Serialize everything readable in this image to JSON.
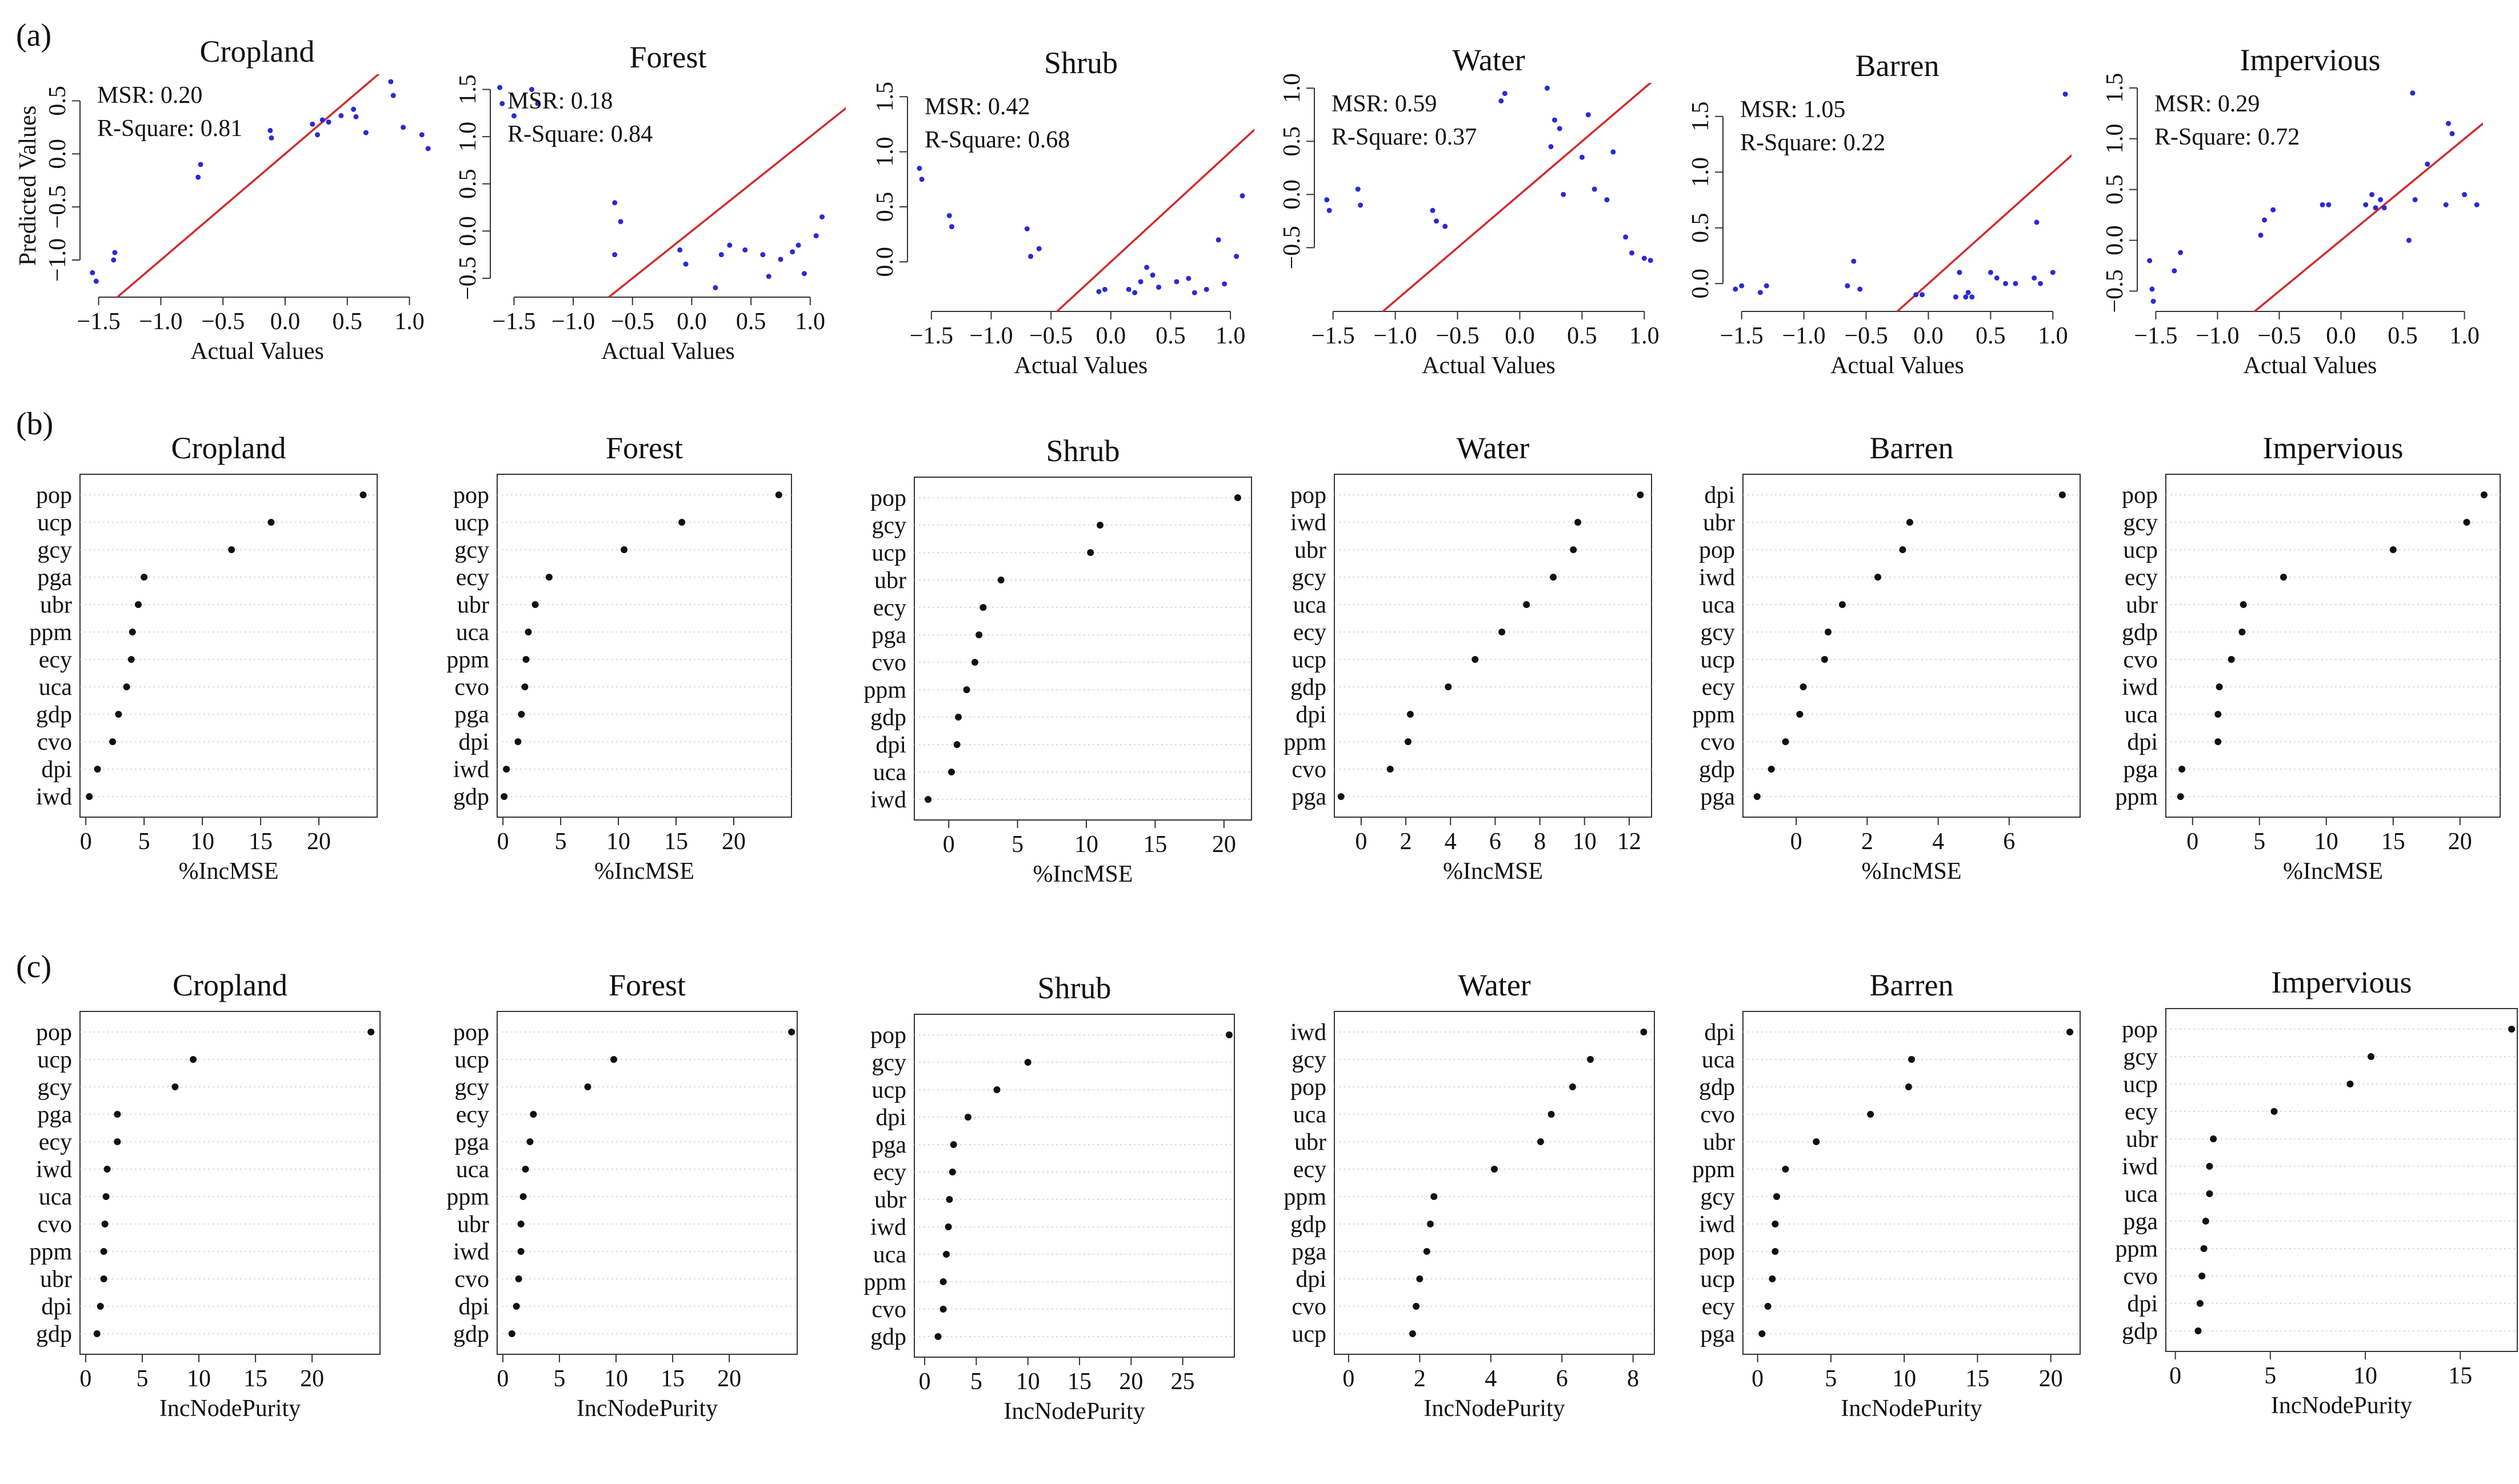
{
  "figure": {
    "row_labels": [
      "(a)",
      "(b)",
      "(c)"
    ],
    "classes": [
      "Cropland",
      "Forest",
      "Shrub",
      "Water",
      "Barren",
      "Impervious"
    ]
  },
  "chart_data": [
    {
      "row": "(a)",
      "type": "scatter",
      "title": "Cropland",
      "xlabel": "Actual Values",
      "ylabel": "Predicted Values",
      "xlim": [
        -1.65,
        1.2
      ],
      "ylim": [
        -1.35,
        0.75
      ],
      "xticks": [
        -1.5,
        -1.0,
        -0.5,
        0.0,
        0.5,
        1.0
      ],
      "xtick_labels": [
        "−1.5",
        "−1.0",
        "−0.5",
        "0.0",
        "0.5",
        "1.0"
      ],
      "yticks": [
        -1.0,
        -0.5,
        0.0,
        0.5
      ],
      "ytick_labels": [
        "−1.0",
        "−0.5",
        "0.0",
        "0.5"
      ],
      "annotation": [
        "MSR: 0.20",
        "R-Square: 0.81"
      ],
      "points": [
        [
          -1.55,
          -1.12
        ],
        [
          -1.52,
          -1.2
        ],
        [
          -1.38,
          -1.0
        ],
        [
          -1.37,
          -0.93
        ],
        [
          -0.7,
          -0.22
        ],
        [
          -0.68,
          -0.1
        ],
        [
          -0.12,
          0.22
        ],
        [
          -0.11,
          0.15
        ],
        [
          0.22,
          0.28
        ],
        [
          0.26,
          0.18
        ],
        [
          0.3,
          0.32
        ],
        [
          0.35,
          0.3
        ],
        [
          0.45,
          0.36
        ],
        [
          0.55,
          0.42
        ],
        [
          0.57,
          0.35
        ],
        [
          0.65,
          0.2
        ],
        [
          0.85,
          0.68
        ],
        [
          0.87,
          0.55
        ],
        [
          0.95,
          0.25
        ],
        [
          1.1,
          0.18
        ],
        [
          1.15,
          0.05
        ]
      ]
    },
    {
      "row": "(a)",
      "type": "scatter",
      "title": "Forest",
      "xlabel": "Actual Values",
      "ylabel": "",
      "xlim": [
        -1.7,
        1.3
      ],
      "ylim": [
        -0.7,
        1.6
      ],
      "xticks": [
        -1.5,
        -1.0,
        -0.5,
        0.0,
        0.5,
        1.0
      ],
      "xtick_labels": [
        "−1.5",
        "−1.0",
        "−0.5",
        "0.0",
        "0.5",
        "1.0"
      ],
      "yticks": [
        -0.5,
        0.0,
        0.5,
        1.0,
        1.5
      ],
      "ytick_labels": [
        "−0.5",
        "0.0",
        "0.5",
        "1.0",
        "1.5"
      ],
      "annotation": [
        "MSR: 0.18",
        "R-Square: 0.84"
      ],
      "points": [
        [
          -1.62,
          1.52
        ],
        [
          -1.6,
          1.35
        ],
        [
          -1.5,
          1.22
        ],
        [
          -1.35,
          1.5
        ],
        [
          -1.3,
          1.35
        ],
        [
          -0.65,
          0.3
        ],
        [
          -0.6,
          0.1
        ],
        [
          -0.65,
          -0.25
        ],
        [
          -0.1,
          -0.2
        ],
        [
          -0.05,
          -0.35
        ],
        [
          0.25,
          -0.25
        ],
        [
          0.32,
          -0.15
        ],
        [
          0.45,
          -0.2
        ],
        [
          0.6,
          -0.25
        ],
        [
          0.75,
          -0.3
        ],
        [
          0.85,
          -0.22
        ],
        [
          0.9,
          -0.15
        ],
        [
          0.95,
          -0.45
        ],
        [
          1.05,
          -0.05
        ],
        [
          1.1,
          0.15
        ],
        [
          0.65,
          -0.48
        ],
        [
          0.2,
          -0.6
        ]
      ]
    },
    {
      "row": "(a)",
      "type": "scatter",
      "title": "Shrub",
      "xlabel": "Actual Values",
      "ylabel": "",
      "xlim": [
        -1.7,
        1.2
      ],
      "ylim": [
        -0.45,
        1.6
      ],
      "xticks": [
        -1.5,
        -1.0,
        -0.5,
        0.0,
        0.5,
        1.0
      ],
      "xtick_labels": [
        "−1.5",
        "−1.0",
        "−0.5",
        "0.0",
        "0.5",
        "1.0"
      ],
      "yticks": [
        0.0,
        0.5,
        1.0,
        1.5
      ],
      "ytick_labels": [
        "0.0",
        "0.5",
        "1.0",
        "1.5"
      ],
      "annotation": [
        "MSR: 0.42",
        "R-Square: 0.68"
      ],
      "points": [
        [
          -1.6,
          0.85
        ],
        [
          -1.58,
          0.75
        ],
        [
          -1.35,
          0.42
        ],
        [
          -1.33,
          0.32
        ],
        [
          -0.7,
          0.3
        ],
        [
          -0.67,
          0.05
        ],
        [
          -0.6,
          0.12
        ],
        [
          -0.1,
          -0.27
        ],
        [
          -0.05,
          -0.25
        ],
        [
          0.15,
          -0.25
        ],
        [
          0.25,
          -0.18
        ],
        [
          0.3,
          -0.05
        ],
        [
          0.35,
          -0.12
        ],
        [
          0.4,
          -0.23
        ],
        [
          0.55,
          -0.18
        ],
        [
          0.65,
          -0.15
        ],
        [
          0.7,
          -0.28
        ],
        [
          0.8,
          -0.25
        ],
        [
          0.9,
          0.2
        ],
        [
          0.95,
          -0.2
        ],
        [
          1.05,
          0.05
        ],
        [
          1.1,
          0.6
        ],
        [
          0.2,
          -0.28
        ]
      ]
    },
    {
      "row": "(a)",
      "type": "scatter",
      "title": "Water",
      "xlabel": "Actual Values",
      "ylabel": "",
      "xlim": [
        -1.65,
        1.15
      ],
      "ylim": [
        -1.1,
        1.05
      ],
      "xticks": [
        -1.5,
        -1.0,
        -0.5,
        0.0,
        0.5,
        1.0
      ],
      "xtick_labels": [
        "−1.5",
        "−1.0",
        "−0.5",
        "0.0",
        "0.5",
        "1.0"
      ],
      "yticks": [
        -0.5,
        0.0,
        0.5,
        1.0
      ],
      "ytick_labels": [
        "−0.5",
        "0.0",
        "0.5",
        "1.0"
      ],
      "annotation": [
        "MSR: 0.59",
        "R-Square: 0.37"
      ],
      "points": [
        [
          -1.55,
          -0.05
        ],
        [
          -1.53,
          -0.15
        ],
        [
          -1.3,
          0.05
        ],
        [
          -1.28,
          -0.1
        ],
        [
          -0.7,
          -0.15
        ],
        [
          -0.67,
          -0.25
        ],
        [
          -0.6,
          -0.3
        ],
        [
          -0.15,
          0.88
        ],
        [
          -0.12,
          0.95
        ],
        [
          0.22,
          1.0
        ],
        [
          0.25,
          0.45
        ],
        [
          0.28,
          0.7
        ],
        [
          0.35,
          0.0
        ],
        [
          0.5,
          0.35
        ],
        [
          0.55,
          0.75
        ],
        [
          0.6,
          0.05
        ],
        [
          0.7,
          -0.05
        ],
        [
          0.75,
          0.4
        ],
        [
          0.85,
          -0.4
        ],
        [
          0.9,
          -0.55
        ],
        [
          1.0,
          -0.6
        ],
        [
          1.05,
          -0.62
        ],
        [
          0.32,
          0.62
        ]
      ]
    },
    {
      "row": "(a)",
      "type": "scatter",
      "title": "Barren",
      "xlabel": "Actual Values",
      "ylabel": "",
      "xlim": [
        -1.65,
        1.15
      ],
      "ylim": [
        -0.25,
        1.75
      ],
      "xticks": [
        -1.5,
        -1.0,
        -0.5,
        0.0,
        0.5,
        1.0
      ],
      "xtick_labels": [
        "−1.5",
        "−1.0",
        "−0.5",
        "0.0",
        "0.5",
        "1.0"
      ],
      "yticks": [
        0.0,
        0.5,
        1.0,
        1.5
      ],
      "ytick_labels": [
        "0.0",
        "0.5",
        "1.0",
        "1.5"
      ],
      "annotation": [
        "MSR: 1.05",
        "R-Square: 0.22"
      ],
      "points": [
        [
          -1.55,
          -0.05
        ],
        [
          -1.5,
          -0.02
        ],
        [
          -1.35,
          -0.08
        ],
        [
          -1.3,
          -0.02
        ],
        [
          -0.65,
          -0.02
        ],
        [
          -0.6,
          0.2
        ],
        [
          -0.55,
          -0.05
        ],
        [
          -0.1,
          -0.1
        ],
        [
          -0.05,
          -0.1
        ],
        [
          0.22,
          -0.12
        ],
        [
          0.25,
          0.1
        ],
        [
          0.3,
          -0.12
        ],
        [
          0.32,
          -0.08
        ],
        [
          0.35,
          -0.12
        ],
        [
          0.5,
          0.1
        ],
        [
          0.55,
          0.05
        ],
        [
          0.62,
          0.0
        ],
        [
          0.7,
          0.0
        ],
        [
          0.85,
          0.05
        ],
        [
          0.87,
          0.55
        ],
        [
          0.9,
          0.0
        ],
        [
          1.0,
          0.1
        ],
        [
          1.1,
          1.7
        ]
      ]
    },
    {
      "row": "(a)",
      "type": "scatter",
      "title": "Impervious",
      "xlabel": "Actual Values",
      "ylabel": "",
      "xlim": [
        -1.65,
        1.15
      ],
      "ylim": [
        -0.7,
        1.55
      ],
      "xticks": [
        -1.5,
        -1.0,
        -0.5,
        0.0,
        0.5,
        1.0
      ],
      "xtick_labels": [
        "−1.5",
        "−1.0",
        "−0.5",
        "0.0",
        "0.5",
        "1.0"
      ],
      "yticks": [
        -0.5,
        0.0,
        0.5,
        1.0,
        1.5
      ],
      "ytick_labels": [
        "−0.5",
        "0.0",
        "0.5",
        "1.0",
        "1.5"
      ],
      "annotation": [
        "MSR: 0.29",
        "R-Square: 0.72"
      ],
      "points": [
        [
          -1.55,
          -0.2
        ],
        [
          -1.53,
          -0.48
        ],
        [
          -1.52,
          -0.6
        ],
        [
          -1.35,
          -0.3
        ],
        [
          -1.3,
          -0.12
        ],
        [
          -0.65,
          0.05
        ],
        [
          -0.62,
          0.2
        ],
        [
          -0.55,
          0.3
        ],
        [
          -0.15,
          0.35
        ],
        [
          -0.1,
          0.35
        ],
        [
          0.2,
          0.35
        ],
        [
          0.25,
          0.45
        ],
        [
          0.28,
          0.32
        ],
        [
          0.32,
          0.4
        ],
        [
          0.35,
          0.32
        ],
        [
          0.55,
          0.0
        ],
        [
          0.58,
          1.45
        ],
        [
          0.6,
          0.4
        ],
        [
          0.7,
          0.75
        ],
        [
          0.85,
          0.35
        ],
        [
          0.87,
          1.15
        ],
        [
          0.9,
          1.05
        ],
        [
          1.0,
          0.45
        ],
        [
          1.1,
          0.35
        ]
      ]
    },
    {
      "row": "(b)",
      "type": "dotchart",
      "title": "Cropland",
      "xlabel": "%IncMSE",
      "xlim": [
        -0.5,
        25
      ],
      "xticks": [
        0,
        5,
        10,
        15,
        20
      ],
      "labels": [
        "pop",
        "ucp",
        "gcy",
        "pga",
        "ubr",
        "ppm",
        "ecy",
        "uca",
        "gdp",
        "cvo",
        "dpi",
        "iwd"
      ],
      "values": [
        23.8,
        15.9,
        12.5,
        5.0,
        4.5,
        4.0,
        3.9,
        3.5,
        2.8,
        2.3,
        1.0,
        0.3
      ]
    },
    {
      "row": "(b)",
      "type": "dotchart",
      "title": "Forest",
      "xlabel": "%IncMSE",
      "xlim": [
        -0.5,
        25
      ],
      "xticks": [
        0,
        5,
        10,
        15,
        20
      ],
      "labels": [
        "pop",
        "ucp",
        "gcy",
        "ecy",
        "ubr",
        "uca",
        "ppm",
        "cvo",
        "pga",
        "dpi",
        "iwd",
        "gdp"
      ],
      "values": [
        23.9,
        15.5,
        10.5,
        4.0,
        2.8,
        2.2,
        2.0,
        1.9,
        1.6,
        1.3,
        0.3,
        0.1
      ]
    },
    {
      "row": "(b)",
      "type": "dotchart",
      "title": "Shrub",
      "xlabel": "%IncMSE",
      "xlim": [
        -2.5,
        22
      ],
      "xticks": [
        0,
        5,
        10,
        15,
        20
      ],
      "labels": [
        "pop",
        "gcy",
        "ucp",
        "ubr",
        "ecy",
        "pga",
        "cvo",
        "ppm",
        "gdp",
        "dpi",
        "uca",
        "iwd"
      ],
      "values": [
        21.0,
        11.0,
        10.3,
        3.8,
        2.5,
        2.2,
        1.9,
        1.3,
        0.7,
        0.6,
        0.2,
        -1.5
      ]
    },
    {
      "row": "(b)",
      "type": "dotchart",
      "title": "Water",
      "xlabel": "%IncMSE",
      "xlim": [
        -1.2,
        13
      ],
      "xticks": [
        0,
        2,
        4,
        6,
        8,
        10,
        12
      ],
      "labels": [
        "pop",
        "iwd",
        "ubr",
        "gcy",
        "uca",
        "ecy",
        "ucp",
        "gdp",
        "dpi",
        "ppm",
        "cvo",
        "pga"
      ],
      "values": [
        12.5,
        9.7,
        9.5,
        8.6,
        7.4,
        6.3,
        5.1,
        3.9,
        2.2,
        2.1,
        1.3,
        -0.9
      ]
    },
    {
      "row": "(b)",
      "type": "dotchart",
      "title": "Barren",
      "xlabel": "%IncMSE",
      "xlim": [
        -1.5,
        8
      ],
      "xticks": [
        0,
        2,
        4,
        6
      ],
      "labels": [
        "dpi",
        "ubr",
        "pop",
        "iwd",
        "uca",
        "gcy",
        "ucp",
        "ecy",
        "ppm",
        "cvo",
        "gdp",
        "pga"
      ],
      "values": [
        7.5,
        3.2,
        3.0,
        2.3,
        1.3,
        0.9,
        0.8,
        0.2,
        0.1,
        -0.3,
        -0.7,
        -1.1
      ]
    },
    {
      "row": "(b)",
      "type": "dotchart",
      "title": "Impervious",
      "xlabel": "%IncMSE",
      "xlim": [
        -2,
        23
      ],
      "xticks": [
        0,
        5,
        10,
        15,
        20
      ],
      "labels": [
        "pop",
        "gcy",
        "ucp",
        "ecy",
        "ubr",
        "gdp",
        "cvo",
        "iwd",
        "uca",
        "dpi",
        "pga",
        "ppm"
      ],
      "values": [
        21.8,
        20.5,
        15.0,
        6.8,
        3.8,
        3.7,
        2.9,
        2.0,
        1.9,
        1.9,
        -0.8,
        -0.9
      ]
    },
    {
      "row": "(c)",
      "type": "dotchart",
      "title": "Cropland",
      "xlabel": "IncNodePurity",
      "xlim": [
        -0.5,
        26
      ],
      "xticks": [
        0,
        5,
        10,
        15,
        20
      ],
      "labels": [
        "pop",
        "ucp",
        "gcy",
        "pga",
        "ecy",
        "iwd",
        "uca",
        "cvo",
        "ppm",
        "ubr",
        "dpi",
        "gdp"
      ],
      "values": [
        25.2,
        9.5,
        7.9,
        2.8,
        2.8,
        1.9,
        1.8,
        1.7,
        1.6,
        1.6,
        1.3,
        1.0
      ]
    },
    {
      "row": "(c)",
      "type": "dotchart",
      "title": "Forest",
      "xlabel": "IncNodePurity",
      "xlim": [
        -0.5,
        26
      ],
      "xticks": [
        0,
        5,
        10,
        15,
        20
      ],
      "labels": [
        "pop",
        "ucp",
        "gcy",
        "ecy",
        "pga",
        "uca",
        "ppm",
        "ubr",
        "iwd",
        "cvo",
        "dpi",
        "gdp"
      ],
      "values": [
        25.5,
        9.8,
        7.5,
        2.7,
        2.4,
        2.0,
        1.8,
        1.6,
        1.6,
        1.4,
        1.2,
        0.8
      ]
    },
    {
      "row": "(c)",
      "type": "dotchart",
      "title": "Shrub",
      "xlabel": "IncNodePurity",
      "xlim": [
        -1,
        30
      ],
      "xticks": [
        0,
        5,
        10,
        15,
        20,
        25
      ],
      "labels": [
        "pop",
        "gcy",
        "ucp",
        "dpi",
        "pga",
        "ecy",
        "ubr",
        "iwd",
        "uca",
        "ppm",
        "cvo",
        "gdp"
      ],
      "values": [
        29.5,
        10.0,
        7.0,
        4.2,
        2.8,
        2.7,
        2.4,
        2.3,
        2.1,
        1.8,
        1.8,
        1.3
      ]
    },
    {
      "row": "(c)",
      "type": "dotchart",
      "title": "Water",
      "xlabel": "IncNodePurity",
      "xlim": [
        -0.4,
        8.6
      ],
      "xticks": [
        0,
        2,
        4,
        6,
        8
      ],
      "labels": [
        "iwd",
        "gcy",
        "pop",
        "uca",
        "ubr",
        "ecy",
        "ppm",
        "gdp",
        "pga",
        "dpi",
        "cvo",
        "ucp"
      ],
      "values": [
        8.3,
        6.8,
        6.3,
        5.7,
        5.4,
        4.1,
        2.4,
        2.3,
        2.2,
        2.0,
        1.9,
        1.8
      ]
    },
    {
      "row": "(c)",
      "type": "dotchart",
      "title": "Barren",
      "xlabel": "IncNodePurity",
      "xlim": [
        -1,
        22
      ],
      "xticks": [
        0,
        5,
        10,
        15,
        20
      ],
      "labels": [
        "dpi",
        "uca",
        "gdp",
        "cvo",
        "ubr",
        "ppm",
        "gcy",
        "iwd",
        "pop",
        "ucp",
        "ecy",
        "pga"
      ],
      "values": [
        21.3,
        10.5,
        10.3,
        7.7,
        4.0,
        1.9,
        1.3,
        1.2,
        1.2,
        1.0,
        0.7,
        0.3
      ]
    },
    {
      "row": "(c)",
      "type": "dotchart",
      "title": "Impervious",
      "xlabel": "IncNodePurity",
      "xlim": [
        -0.5,
        18
      ],
      "xticks": [
        0,
        5,
        10,
        15
      ],
      "labels": [
        "pop",
        "gcy",
        "ucp",
        "ecy",
        "ubr",
        "iwd",
        "uca",
        "pga",
        "ppm",
        "cvo",
        "dpi",
        "gdp"
      ],
      "values": [
        17.7,
        10.3,
        9.2,
        5.2,
        2.0,
        1.8,
        1.8,
        1.6,
        1.5,
        1.4,
        1.3,
        1.2
      ]
    }
  ]
}
